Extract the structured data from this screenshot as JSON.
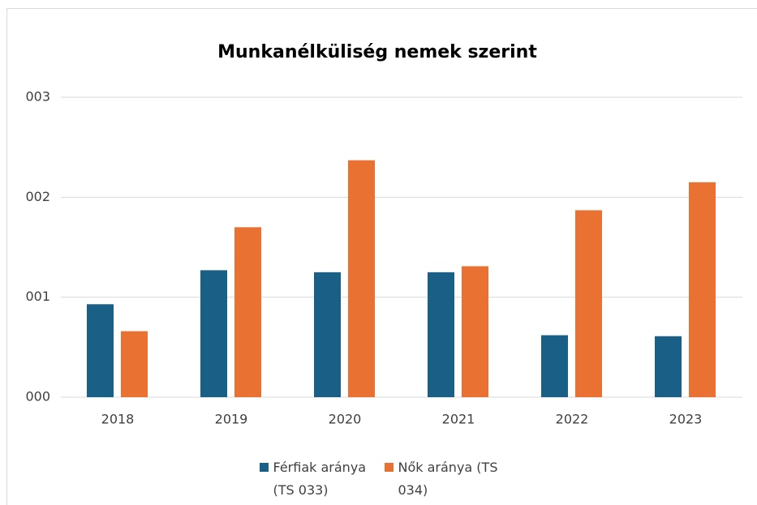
{
  "chart_data": {
    "type": "bar",
    "title": "Munkanélküliség nemek szerint",
    "categories": [
      "2018",
      "2019",
      "2020",
      "2021",
      "2022",
      "2023"
    ],
    "series": [
      {
        "name": "Férfiak aránya (TS 033)",
        "color": "#1a5f85",
        "values": [
          0.93,
          1.27,
          1.25,
          1.25,
          0.62,
          0.61
        ]
      },
      {
        "name": "Nők aránya (TS 034)",
        "color": "#e97132",
        "values": [
          0.66,
          1.7,
          2.37,
          1.31,
          1.87,
          2.15
        ]
      }
    ],
    "ylim": [
      0,
      3
    ],
    "yticks": [
      {
        "value": 0,
        "label": "000"
      },
      {
        "value": 1,
        "label": "001"
      },
      {
        "value": 2,
        "label": "002"
      },
      {
        "value": 3,
        "label": "003"
      }
    ],
    "grid": true,
    "legend": "bottom"
  }
}
